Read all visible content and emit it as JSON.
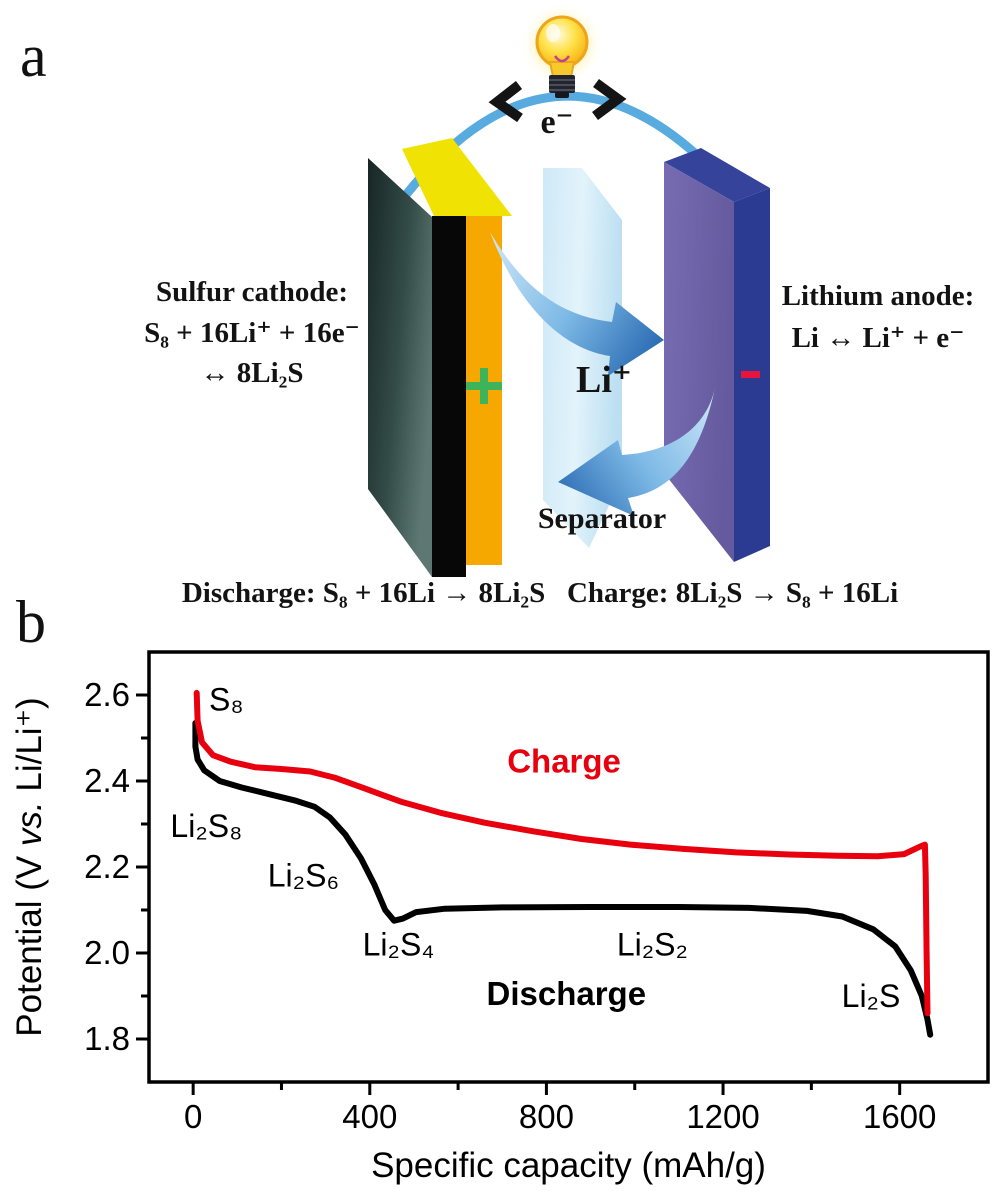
{
  "figure": {
    "panel_a_label": "a",
    "panel_b_label": "b"
  },
  "panel_a": {
    "electron_label": "e⁻",
    "wire_color": "#58abdf",
    "cathode": {
      "title": "Sulfur cathode:",
      "reaction_line1": "S₈ + 16Li⁺ + 16e⁻",
      "reaction_line2": "↔ 8Li₂S",
      "terminal_icon": "plus-icon",
      "terminal_color": "#3db45a",
      "layer_colors": {
        "current_collector": "#2b423e",
        "carbon": "#070707",
        "sulfur": "#f6a800",
        "top_face": "#f0e202"
      }
    },
    "anode": {
      "title": "Lithium anode:",
      "reaction": "Li ↔ Li⁺ + e⁻",
      "terminal_icon": "minus-icon",
      "terminal_color": "#e8143c",
      "colors": {
        "front": "#6f63a9",
        "side": "#2c3b92"
      }
    },
    "separator_label": "Separator",
    "separator_color": "#d6ecf8",
    "li_ion_label": "Li⁺",
    "ion_arrow_color": "#3a7cc0",
    "bottom_equation": "Discharge: S₈ + 16Li → 8Li₂S  Charge: 8Li₂S → S₈ + 16Li"
  },
  "chart_data": {
    "type": "line",
    "title": "",
    "xlabel": "Specific capacity (mAh/g)",
    "ylabel_parts": [
      "Potential (V ",
      "vs.",
      " Li/Li⁺)"
    ],
    "xlim": [
      -100,
      1800
    ],
    "ylim": [
      1.7,
      2.7
    ],
    "grid": false,
    "frame": true,
    "legend": "inline-labels",
    "x_tick_values": [
      0,
      400,
      800,
      1200,
      1600
    ],
    "x_tick_labels": [
      "0",
      "400",
      "800",
      "1200",
      "1600"
    ],
    "x_minor_ticks": [
      200,
      600,
      1000,
      1400
    ],
    "y_tick_values": [
      2.6,
      2.4,
      2.2,
      2.0,
      1.8
    ],
    "y_tick_labels": [
      "2.6",
      "2.4",
      "2.2",
      "2.0",
      "1.8"
    ],
    "y_minor_ticks": [
      2.5,
      2.3,
      2.1,
      1.9
    ],
    "series": [
      {
        "name": "Discharge",
        "color": "#000000",
        "points": [
          [
            5,
            2.535
          ],
          [
            5,
            2.48
          ],
          [
            10,
            2.45
          ],
          [
            25,
            2.425
          ],
          [
            60,
            2.4
          ],
          [
            110,
            2.385
          ],
          [
            170,
            2.37
          ],
          [
            230,
            2.355
          ],
          [
            275,
            2.34
          ],
          [
            310,
            2.315
          ],
          [
            345,
            2.275
          ],
          [
            380,
            2.22
          ],
          [
            410,
            2.16
          ],
          [
            435,
            2.1
          ],
          [
            455,
            2.075
          ],
          [
            475,
            2.08
          ],
          [
            505,
            2.095
          ],
          [
            570,
            2.103
          ],
          [
            700,
            2.106
          ],
          [
            900,
            2.107
          ],
          [
            1100,
            2.107
          ],
          [
            1260,
            2.105
          ],
          [
            1390,
            2.098
          ],
          [
            1470,
            2.085
          ],
          [
            1540,
            2.055
          ],
          [
            1590,
            2.015
          ],
          [
            1625,
            1.96
          ],
          [
            1650,
            1.9
          ],
          [
            1663,
            1.845
          ],
          [
            1669,
            1.81
          ]
        ]
      },
      {
        "name": "Charge",
        "color": "#e8000f",
        "points": [
          [
            8,
            2.605
          ],
          [
            10,
            2.54
          ],
          [
            20,
            2.49
          ],
          [
            45,
            2.46
          ],
          [
            85,
            2.445
          ],
          [
            140,
            2.432
          ],
          [
            200,
            2.428
          ],
          [
            265,
            2.422
          ],
          [
            320,
            2.408
          ],
          [
            390,
            2.382
          ],
          [
            470,
            2.352
          ],
          [
            560,
            2.326
          ],
          [
            660,
            2.303
          ],
          [
            770,
            2.283
          ],
          [
            880,
            2.265
          ],
          [
            990,
            2.252
          ],
          [
            1110,
            2.242
          ],
          [
            1230,
            2.234
          ],
          [
            1350,
            2.229
          ],
          [
            1460,
            2.226
          ],
          [
            1550,
            2.225
          ],
          [
            1610,
            2.23
          ],
          [
            1645,
            2.247
          ],
          [
            1657,
            2.252
          ],
          [
            1659,
            2.18
          ],
          [
            1661,
            2.0
          ],
          [
            1663,
            1.86
          ]
        ]
      }
    ],
    "annotations": [
      {
        "text": "S₈",
        "x": 75,
        "y": 2.59,
        "color": "#000000",
        "bold": false,
        "size": 32
      },
      {
        "text": "Li₂S₈",
        "x": 30,
        "y": 2.295,
        "color": "#000000",
        "bold": false,
        "size": 32
      },
      {
        "text": "Li₂S₆",
        "x": 250,
        "y": 2.18,
        "color": "#000000",
        "bold": false,
        "size": 32
      },
      {
        "text": "Li₂S₄",
        "x": 465,
        "y": 2.02,
        "color": "#000000",
        "bold": false,
        "size": 32
      },
      {
        "text": "Li₂S₂",
        "x": 1040,
        "y": 2.02,
        "color": "#000000",
        "bold": false,
        "size": 32
      },
      {
        "text": "Discharge",
        "x": 845,
        "y": 1.905,
        "color": "#000000",
        "bold": true,
        "size": 33
      },
      {
        "text": "Li₂S",
        "x": 1535,
        "y": 1.9,
        "color": "#000000",
        "bold": false,
        "size": 32
      },
      {
        "text": "Charge",
        "x": 840,
        "y": 2.445,
        "color": "#e8000f",
        "bold": true,
        "size": 33
      }
    ]
  }
}
